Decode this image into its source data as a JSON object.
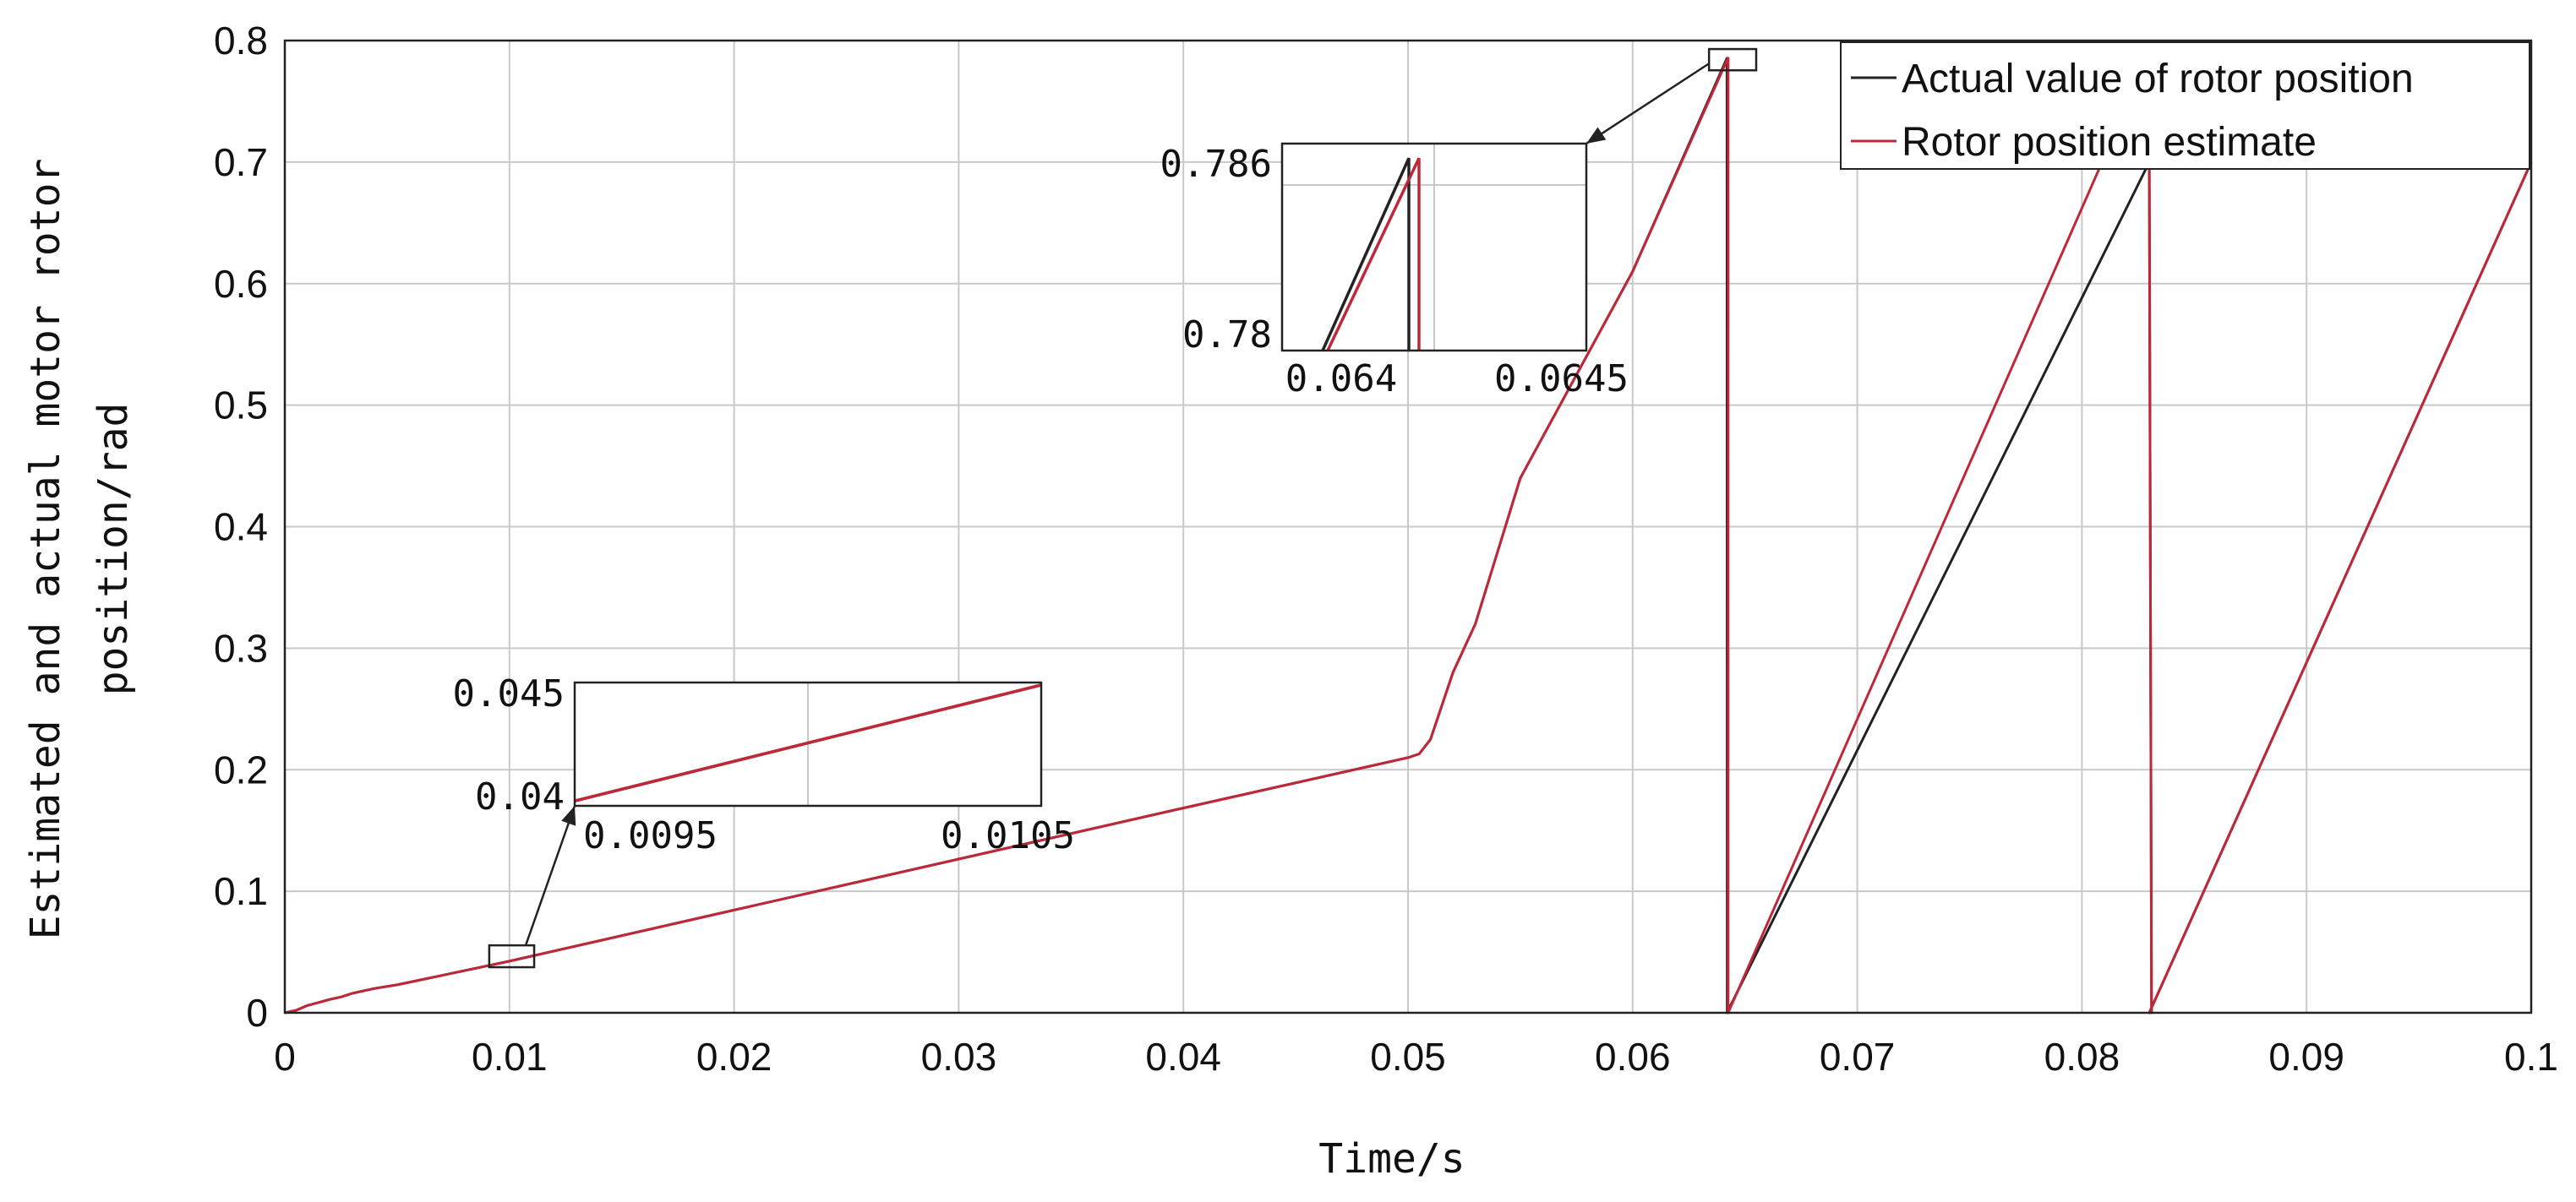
{
  "chart_data": {
    "type": "line",
    "xlabel": "Time/s",
    "ylabel_lines": [
      "Estimated and actual motor rotor",
      "position/rad"
    ],
    "xlim": [
      0,
      0.1
    ],
    "ylim": [
      0,
      0.8
    ],
    "grid": true,
    "legend_placement": "top-right",
    "x_ticks": [
      0,
      0.01,
      0.02,
      0.03,
      0.04,
      0.05,
      0.06,
      0.07,
      0.08,
      0.09,
      0.1
    ],
    "x_tick_labels": [
      "0",
      "0.01",
      "0.02",
      "0.03",
      "0.04",
      "0.05",
      "0.06",
      "0.07",
      "0.08",
      "0.09",
      "0.1"
    ],
    "y_ticks": [
      0,
      0.1,
      0.2,
      0.3,
      0.4,
      0.5,
      0.6,
      0.7,
      0.8
    ],
    "y_tick_labels": [
      "0",
      "0.1",
      "0.2",
      "0.3",
      "0.4",
      "0.5",
      "0.6",
      "0.7",
      "0.8"
    ],
    "series": [
      {
        "name": "Actual value of rotor position",
        "color": "#222222",
        "x": [
          0,
          0.0005,
          0.001,
          0.002,
          0.0025,
          0.003,
          0.004,
          0.005,
          0.01,
          0.02,
          0.03,
          0.04,
          0.05,
          0.0505,
          0.051,
          0.052,
          0.053,
          0.055,
          0.06,
          0.0642,
          0.06421,
          0.0642,
          0.083,
          0.0831,
          0.083,
          0.1
        ],
        "y": [
          0,
          0.002,
          0.006,
          0.011,
          0.013,
          0.016,
          0.02,
          0.023,
          0.0425,
          0.0845,
          0.1265,
          0.1685,
          0.21,
          0.213,
          0.225,
          0.28,
          0.32,
          0.44,
          0.61,
          0.7855,
          0,
          0,
          0.7,
          0,
          0,
          0.7
        ]
      },
      {
        "name": "Rotor position estimate",
        "color": "#c0283a",
        "x": [
          0,
          0.0005,
          0.001,
          0.002,
          0.0025,
          0.003,
          0.004,
          0.005,
          0.01,
          0.02,
          0.03,
          0.04,
          0.05,
          0.0505,
          0.051,
          0.052,
          0.053,
          0.055,
          0.06,
          0.06424,
          0.06425,
          0.06425,
          0.0809,
          0.083,
          0.0831,
          0.083,
          0.1
        ],
        "y": [
          0,
          0.002,
          0.006,
          0.011,
          0.013,
          0.016,
          0.02,
          0.023,
          0.0425,
          0.0845,
          0.1265,
          0.1685,
          0.21,
          0.213,
          0.225,
          0.28,
          0.32,
          0.44,
          0.61,
          0.7855,
          0.7855,
          0,
          0.7,
          0.7,
          0,
          0,
          0.7
        ]
      }
    ],
    "insets": [
      {
        "xlim": [
          0.0093,
          0.0107
        ],
        "ylim": [
          0.04,
          0.045
        ],
        "x_tick_labels": [
          "0.0095",
          "0.0105"
        ],
        "y_tick_labels": [
          "0.045",
          "0.04"
        ],
        "source_region_x": [
          0.0091,
          0.0111
        ],
        "source_region_y": [
          0.0375,
          0.0555
        ],
        "series": [
          {
            "name": "Actual value of rotor position",
            "x": [
              0.0093,
              0.0107
            ],
            "y": [
              0.0402,
              0.0449
            ]
          },
          {
            "name": "Rotor position estimate",
            "x": [
              0.0093,
              0.0107
            ],
            "y": [
              0.0402,
              0.0449
            ]
          }
        ]
      },
      {
        "xlim": [
          0.06395,
          0.06455
        ],
        "ylim": [
          0.778,
          0.788
        ],
        "x_tick_labels": [
          "0.064",
          "0.0645"
        ],
        "y_tick_labels": [
          "0.786",
          "0.78"
        ],
        "source_region_x": [
          0.0634,
          0.0655
        ],
        "source_region_y": [
          0.7755,
          0.793
        ],
        "series": [
          {
            "name": "Actual value of rotor position",
            "x": [
              0.06403,
              0.0642,
              0.0642
            ],
            "y": [
              0.778,
              0.7873,
              0.778
            ]
          },
          {
            "name": "Rotor position estimate",
            "x": [
              0.06404,
              0.06422,
              0.06422
            ],
            "y": [
              0.778,
              0.7873,
              0.778
            ]
          }
        ]
      }
    ]
  }
}
